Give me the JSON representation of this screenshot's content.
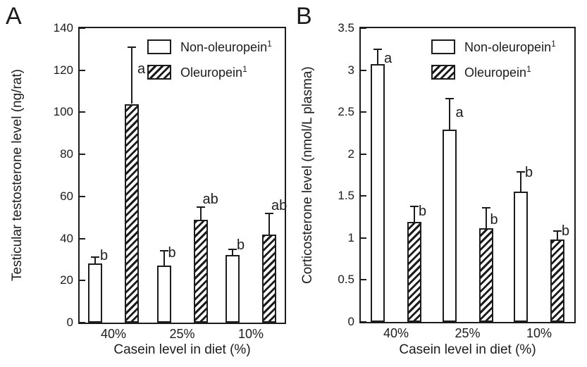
{
  "chart_data": [
    {
      "type": "bar",
      "panel_label": "A",
      "title": "",
      "ylabel": "Testicular testosterone level (ng/rat)",
      "xlabel": "Casein level in diet (%)",
      "ylim": [
        0,
        140
      ],
      "yticks": [
        0,
        20,
        40,
        60,
        80,
        100,
        120,
        140
      ],
      "ytick_labels": [
        "0",
        "20",
        "40",
        "60",
        "80",
        "100",
        "120",
        "140"
      ],
      "categories": [
        "40%",
        "25%",
        "10%"
      ],
      "grid": false,
      "legend_position": "inside-top-right",
      "series": [
        {
          "name": "Non-oleuropein",
          "legend_sup": "1",
          "fill": "white",
          "values": [
            28,
            27,
            32
          ],
          "errors_upper": [
            3,
            7,
            3
          ],
          "sig_letters": [
            "b",
            "b",
            "b"
          ],
          "letter_offsets": [
            [
              7,
              -2
            ],
            [
              6,
              3
            ],
            [
              6,
              -6
            ]
          ]
        },
        {
          "name": "Oleuropein",
          "legend_sup": "1",
          "fill": "hatch",
          "values": [
            104,
            49,
            42
          ],
          "errors_upper": [
            27,
            6,
            10
          ],
          "sig_letters": [
            "a",
            "ab",
            "ab"
          ],
          "letter_offsets": [
            [
              8,
              31
            ],
            [
              3,
              -11
            ],
            [
              3,
              -11
            ]
          ]
        }
      ]
    },
    {
      "type": "bar",
      "panel_label": "B",
      "title": "",
      "ylabel": "Corticosterone level (nmol/L plasma)",
      "xlabel": "Casein level in diet (%)",
      "ylim": [
        0,
        3.5
      ],
      "yticks": [
        0,
        0.5,
        1,
        1.5,
        2,
        2.5,
        3,
        3.5
      ],
      "ytick_labels": [
        "0",
        "0.5",
        "1",
        "1.5",
        "2",
        "2.5",
        "3",
        "3.5"
      ],
      "categories": [
        "40%",
        "25%",
        "10%"
      ],
      "grid": false,
      "legend_position": "inside-top-right",
      "series": [
        {
          "name": "Non-oleuropein",
          "legend_sup": "1",
          "fill": "white",
          "values": [
            3.07,
            2.29,
            1.55
          ],
          "errors_upper": [
            0.18,
            0.37,
            0.24
          ],
          "sig_letters": [
            "a",
            "a",
            "b"
          ],
          "letter_offsets": [
            [
              9,
              13
            ],
            [
              9,
              20
            ],
            [
              6,
              1
            ]
          ]
        },
        {
          "name": "Oleuropein",
          "legend_sup": "1",
          "fill": "hatch",
          "values": [
            1.19,
            1.12,
            0.98
          ],
          "errors_upper": [
            0.19,
            0.24,
            0.1
          ],
          "sig_letters": [
            "b",
            "b",
            "b"
          ],
          "letter_offsets": [
            [
              6,
              7
            ],
            [
              6,
              17
            ],
            [
              6,
              0
            ]
          ]
        }
      ]
    }
  ]
}
